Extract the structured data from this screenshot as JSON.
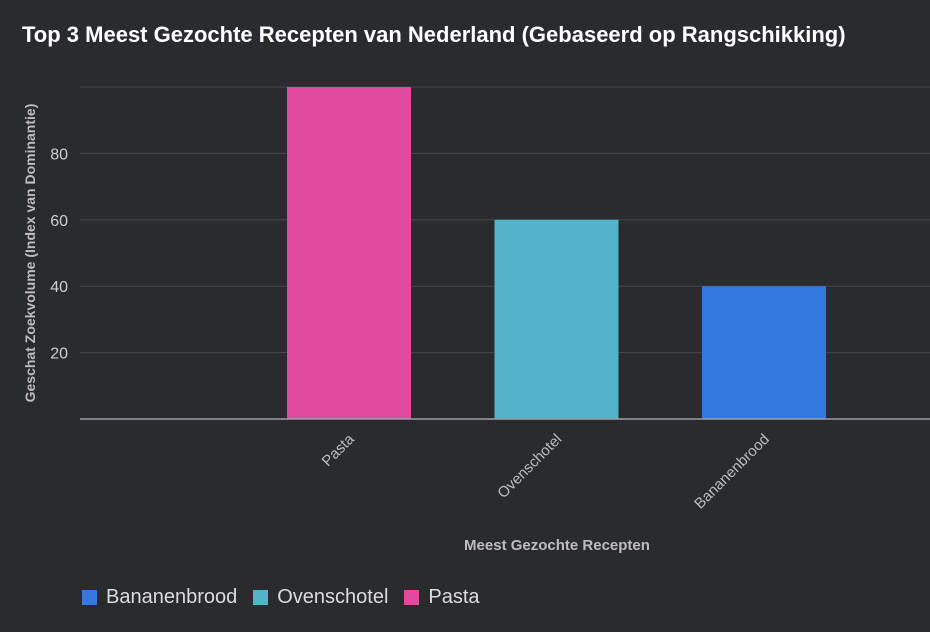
{
  "chart_data": {
    "type": "bar",
    "title": "Top 3 Meest Gezochte Recepten van Nederland (Gebaseerd op Rangschikking)",
    "xlabel": "Meest Gezochte Recepten",
    "ylabel": "Geschat Zoekvolume (Index van Dominantie)",
    "categories": [
      "Pasta",
      "Ovenschotel",
      "Bananenbrood"
    ],
    "values": [
      100,
      60,
      40
    ],
    "colors": [
      "#e24a9e",
      "#53b3c9",
      "#3478e0"
    ],
    "ylim": [
      0,
      100
    ],
    "yticks": [
      20,
      40,
      60,
      80
    ],
    "grid": true,
    "legend": {
      "placement": "bottom-left",
      "items": [
        {
          "label": "Bananenbrood",
          "color": "#3478e0"
        },
        {
          "label": "Ovenschotel",
          "color": "#53b3c9"
        },
        {
          "label": "Pasta",
          "color": "#e24a9e"
        }
      ]
    }
  }
}
